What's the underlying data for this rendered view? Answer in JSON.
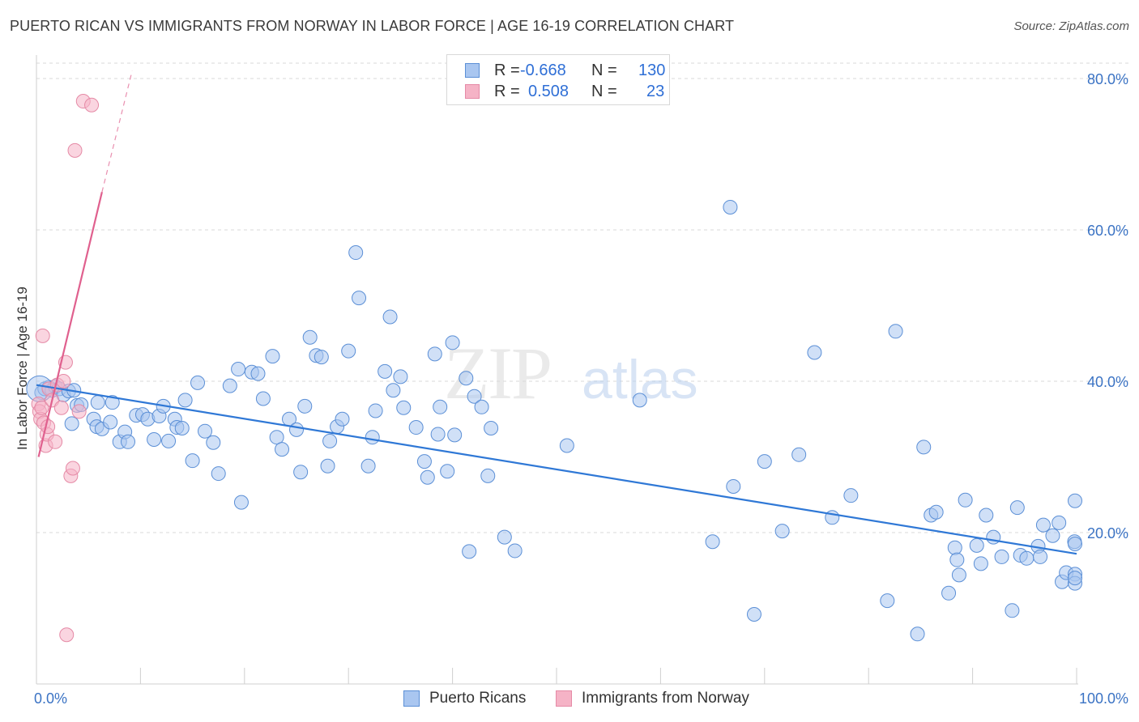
{
  "title": "PUERTO RICAN VS IMMIGRANTS FROM NORWAY IN LABOR FORCE | AGE 16-19 CORRELATION CHART",
  "source": "Source: ZipAtlas.com",
  "watermark": {
    "zip": "ZIP",
    "atlas": "atlas"
  },
  "legend": {
    "r_label": "R =",
    "n_label": "N =",
    "rows": [
      {
        "r": "-0.668",
        "n": "130"
      },
      {
        "r": "0.508",
        "n": "23"
      }
    ]
  },
  "bottom_legend": [
    "Puerto Ricans",
    "Immigrants from Norway"
  ],
  "colors": {
    "blue_fill": "#a9c6f0",
    "blue_stroke": "#5b8fd6",
    "blue_line": "#2f78d6",
    "pink_fill": "#f5b3c6",
    "pink_stroke": "#e58aa6",
    "pink_line": "#e0608e",
    "axis_text": "#3b73c4",
    "grid": "#d8d8d8"
  },
  "chart_data": {
    "type": "scatter",
    "title": "PUERTO RICAN VS IMMIGRANTS FROM NORWAY IN LABOR FORCE | AGE 16-19 CORRELATION CHART",
    "xlabel": "",
    "ylabel": "In Labor Force | Age 16-19",
    "xlim": [
      0,
      100
    ],
    "ylim": [
      0,
      80
    ],
    "x_tick_labels": [
      "0.0%",
      "100.0%"
    ],
    "y_tick_labels": [
      "20.0%",
      "40.0%",
      "60.0%",
      "80.0%"
    ],
    "y_ticks": [
      20,
      40,
      60,
      80
    ],
    "series": [
      {
        "name": "Puerto Ricans",
        "r": -0.668,
        "n": 130,
        "trend": {
          "x": [
            0,
            100
          ],
          "y": [
            39.5,
            17.2
          ]
        },
        "points": [
          [
            0.5,
            38.5
          ],
          [
            0.8,
            39.0
          ],
          [
            1.2,
            39.2
          ],
          [
            1.5,
            38.8
          ],
          [
            1.8,
            39.3
          ],
          [
            2.2,
            39.0
          ],
          [
            2.6,
            38.2
          ],
          [
            3.1,
            38.7
          ],
          [
            3.4,
            34.4
          ],
          [
            3.6,
            38.8
          ],
          [
            3.9,
            36.8
          ],
          [
            4.3,
            36.9
          ],
          [
            5.5,
            35.0
          ],
          [
            5.8,
            34.0
          ],
          [
            5.9,
            37.2
          ],
          [
            6.3,
            33.7
          ],
          [
            7.1,
            34.6
          ],
          [
            7.3,
            37.2
          ],
          [
            8.0,
            32.0
          ],
          [
            8.5,
            33.3
          ],
          [
            8.8,
            32.0
          ],
          [
            9.6,
            35.5
          ],
          [
            10.2,
            35.6
          ],
          [
            10.7,
            35.0
          ],
          [
            11.3,
            32.3
          ],
          [
            11.8,
            35.4
          ],
          [
            12.2,
            36.7
          ],
          [
            12.7,
            32.1
          ],
          [
            13.3,
            35.0
          ],
          [
            13.5,
            33.9
          ],
          [
            14.0,
            33.8
          ],
          [
            14.3,
            37.5
          ],
          [
            15.0,
            29.5
          ],
          [
            15.5,
            39.8
          ],
          [
            16.2,
            33.4
          ],
          [
            17.0,
            31.9
          ],
          [
            17.5,
            27.8
          ],
          [
            18.6,
            39.4
          ],
          [
            19.4,
            41.6
          ],
          [
            19.7,
            24.0
          ],
          [
            20.7,
            41.2
          ],
          [
            21.3,
            41.0
          ],
          [
            21.8,
            37.7
          ],
          [
            22.7,
            43.3
          ],
          [
            23.1,
            32.6
          ],
          [
            23.6,
            31.0
          ],
          [
            24.3,
            35.0
          ],
          [
            25.0,
            33.6
          ],
          [
            25.4,
            28.0
          ],
          [
            25.8,
            36.7
          ],
          [
            26.3,
            45.8
          ],
          [
            26.9,
            43.4
          ],
          [
            27.4,
            43.2
          ],
          [
            28.0,
            28.8
          ],
          [
            28.2,
            32.1
          ],
          [
            28.9,
            34.0
          ],
          [
            29.4,
            35.0
          ],
          [
            30.0,
            44.0
          ],
          [
            30.7,
            57.0
          ],
          [
            31.0,
            51.0
          ],
          [
            31.9,
            28.8
          ],
          [
            32.3,
            32.6
          ],
          [
            32.6,
            36.1
          ],
          [
            33.5,
            41.3
          ],
          [
            34.0,
            48.5
          ],
          [
            34.3,
            38.8
          ],
          [
            35.0,
            40.6
          ],
          [
            35.3,
            36.5
          ],
          [
            36.5,
            33.9
          ],
          [
            37.3,
            29.4
          ],
          [
            37.6,
            27.3
          ],
          [
            38.3,
            43.6
          ],
          [
            38.6,
            33.0
          ],
          [
            38.8,
            36.6
          ],
          [
            39.5,
            28.1
          ],
          [
            40.0,
            45.1
          ],
          [
            40.2,
            32.9
          ],
          [
            41.3,
            40.4
          ],
          [
            41.6,
            17.5
          ],
          [
            42.1,
            38.0
          ],
          [
            42.8,
            36.6
          ],
          [
            43.4,
            27.5
          ],
          [
            43.7,
            33.8
          ],
          [
            45.0,
            19.4
          ],
          [
            46.0,
            17.6
          ],
          [
            51.0,
            31.5
          ],
          [
            58.0,
            37.5
          ],
          [
            65.0,
            18.8
          ],
          [
            66.7,
            63.0
          ],
          [
            67.0,
            26.1
          ],
          [
            69.0,
            9.2
          ],
          [
            70.0,
            29.4
          ],
          [
            71.7,
            20.2
          ],
          [
            73.3,
            30.3
          ],
          [
            74.8,
            43.8
          ],
          [
            76.5,
            22.0
          ],
          [
            78.3,
            24.9
          ],
          [
            81.8,
            11.0
          ],
          [
            82.6,
            46.6
          ],
          [
            84.7,
            6.6
          ],
          [
            85.3,
            31.3
          ],
          [
            86.0,
            22.3
          ],
          [
            86.5,
            22.7
          ],
          [
            87.7,
            12.0
          ],
          [
            88.3,
            18.0
          ],
          [
            88.5,
            16.4
          ],
          [
            88.7,
            14.4
          ],
          [
            89.3,
            24.3
          ],
          [
            90.4,
            18.3
          ],
          [
            90.8,
            15.9
          ],
          [
            91.3,
            22.3
          ],
          [
            92.0,
            19.4
          ],
          [
            92.8,
            16.8
          ],
          [
            93.8,
            9.7
          ],
          [
            94.3,
            23.3
          ],
          [
            94.6,
            17.0
          ],
          [
            95.2,
            16.6
          ],
          [
            96.3,
            18.2
          ],
          [
            96.5,
            16.8
          ],
          [
            96.8,
            21.0
          ],
          [
            97.7,
            19.6
          ],
          [
            98.3,
            21.3
          ],
          [
            98.6,
            13.5
          ],
          [
            99.0,
            14.7
          ],
          [
            99.8,
            18.8
          ],
          [
            100.3,
            14.5
          ],
          [
            100.6,
            13.3
          ],
          [
            100.9,
            24.2
          ],
          [
            103.0,
            18.5
          ],
          [
            104.5,
            14.0
          ]
        ]
      },
      {
        "name": "Immigrants from Norway",
        "r": 0.508,
        "n": 23,
        "trend": {
          "x": [
            0.2,
            6.3,
            9.2
          ],
          "y": [
            30.0,
            65.0,
            81.0
          ]
        },
        "points": [
          [
            0.2,
            37.0
          ],
          [
            0.3,
            36.0
          ],
          [
            0.4,
            35.0
          ],
          [
            0.5,
            36.5
          ],
          [
            0.6,
            46.0
          ],
          [
            0.7,
            34.5
          ],
          [
            0.9,
            31.5
          ],
          [
            1.0,
            33.0
          ],
          [
            1.1,
            34.0
          ],
          [
            1.2,
            39.0
          ],
          [
            1.5,
            37.5
          ],
          [
            1.8,
            32.0
          ],
          [
            2.0,
            39.5
          ],
          [
            2.4,
            36.5
          ],
          [
            2.6,
            40.0
          ],
          [
            2.8,
            42.5
          ],
          [
            3.3,
            27.5
          ],
          [
            3.5,
            28.5
          ],
          [
            4.1,
            36.0
          ],
          [
            4.5,
            77.0
          ],
          [
            5.3,
            76.5
          ],
          [
            2.9,
            6.5
          ],
          [
            3.7,
            70.5
          ]
        ]
      }
    ]
  }
}
